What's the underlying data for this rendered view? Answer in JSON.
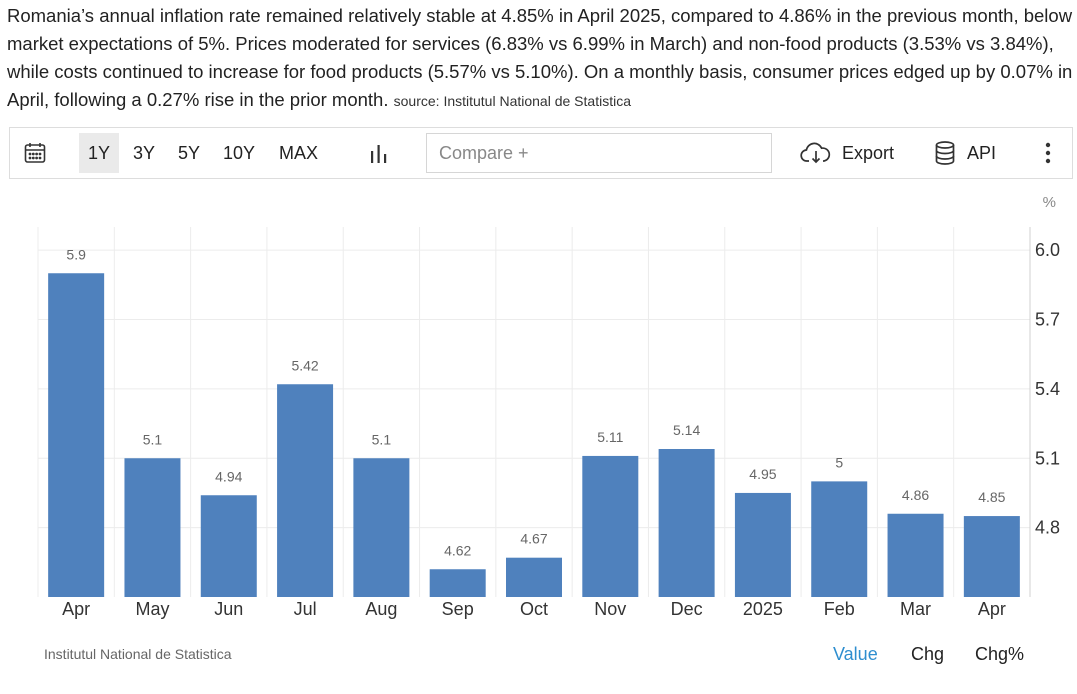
{
  "description": {
    "text": "Romania’s annual inflation rate remained relatively stable at 4.85% in April 2025, compared to 4.86% in the previous month, below market expectations of 5%. Prices moderated for services (6.83% vs 6.99% in March) and non-food products (3.53% vs 3.84%), while costs continued to increase for food products (5.57% vs 5.10%). On a monthly basis, consumer prices edged up by 0.07% in April, following a 0.27% rise in the prior month.",
    "source": "source: Institutul National de Statistica"
  },
  "toolbar": {
    "ranges": [
      "1Y",
      "3Y",
      "5Y",
      "10Y",
      "MAX"
    ],
    "active_range": "1Y",
    "compare_placeholder": "Compare +",
    "export_label": "Export",
    "api_label": "API"
  },
  "icons": {
    "calendar": "calendar-icon",
    "chart_type": "bar-chart-icon",
    "export": "cloud-download-icon",
    "api": "database-icon",
    "more": "more-vertical-icon"
  },
  "chart_data": {
    "type": "bar",
    "categories": [
      "Apr",
      "May",
      "Jun",
      "Jul",
      "Aug",
      "Sep",
      "Oct",
      "Nov",
      "Dec",
      "2025",
      "Feb",
      "Mar",
      "Apr"
    ],
    "values": [
      5.9,
      5.1,
      4.94,
      5.42,
      5.1,
      4.62,
      4.67,
      5.11,
      5.14,
      4.95,
      5,
      4.86,
      4.85
    ],
    "value_labels": [
      "5.9",
      "5.1",
      "4.94",
      "5.42",
      "5.1",
      "4.62",
      "4.67",
      "5.11",
      "5.14",
      "4.95",
      "5",
      "4.86",
      "4.85"
    ],
    "yticks": [
      "4.8",
      "5.1",
      "5.4",
      "5.7",
      "6.0"
    ],
    "unit": "%",
    "ylim": [
      4.5,
      6.1
    ],
    "y_axis_position": "right",
    "grid": true,
    "bar_color": "#4f81bd"
  },
  "footer": {
    "source": "Institutul National de Statistica",
    "view_buttons": [
      "Value",
      "Chg",
      "Chg%"
    ],
    "active_view": "Value",
    "active_color": "#2e8ecf"
  }
}
